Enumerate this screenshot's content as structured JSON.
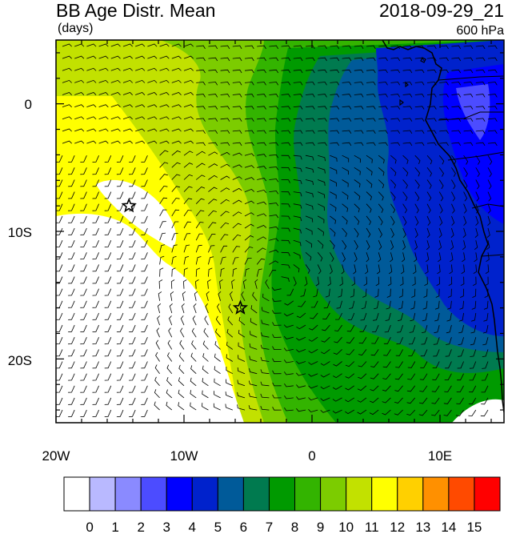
{
  "title": {
    "left": "BB Age Distr. Mean",
    "units": "(days)",
    "right": "2018-09-29_21",
    "level": "600 hPa"
  },
  "axes": {
    "x_ticks": [
      "20W",
      "10W",
      "0",
      "10E"
    ],
    "y_ticks": [
      "0",
      "10S",
      "20S"
    ],
    "lon_range": [
      -20,
      15
    ],
    "lat_range": [
      -25,
      5
    ]
  },
  "colorbar": {
    "labels": [
      "0",
      "1",
      "2",
      "3",
      "4",
      "5",
      "6",
      "7",
      "8",
      "9",
      "10",
      "11",
      "12",
      "13",
      "14",
      "15"
    ],
    "colors": [
      "#ffffff",
      "#b9b9ff",
      "#8a8aff",
      "#4c4cff",
      "#0000ff",
      "#0022cc",
      "#005a99",
      "#007a4f",
      "#009a00",
      "#33b400",
      "#7ccc00",
      "#c2e100",
      "#ffff00",
      "#ffd000",
      "#ff9000",
      "#ff4a00",
      "#ff0000"
    ]
  },
  "markers": [
    {
      "name": "star-1",
      "lon": -14.3,
      "lat": -8.0
    },
    {
      "name": "star-2",
      "lon": -5.6,
      "lat": -16.0
    }
  ],
  "field_colors": {
    "white": "#ffffff",
    "yellow": "#ffff00",
    "yellow_green": "#c2e100",
    "light_green": "#7ccc00",
    "green": "#33b400",
    "med_green": "#009a00",
    "sea_green": "#007a4f",
    "teal": "#005a99",
    "dark_blue": "#0022cc",
    "blue": "#0000ff",
    "light_blue": "#4c4cff",
    "lavender": "#8a8aff"
  }
}
